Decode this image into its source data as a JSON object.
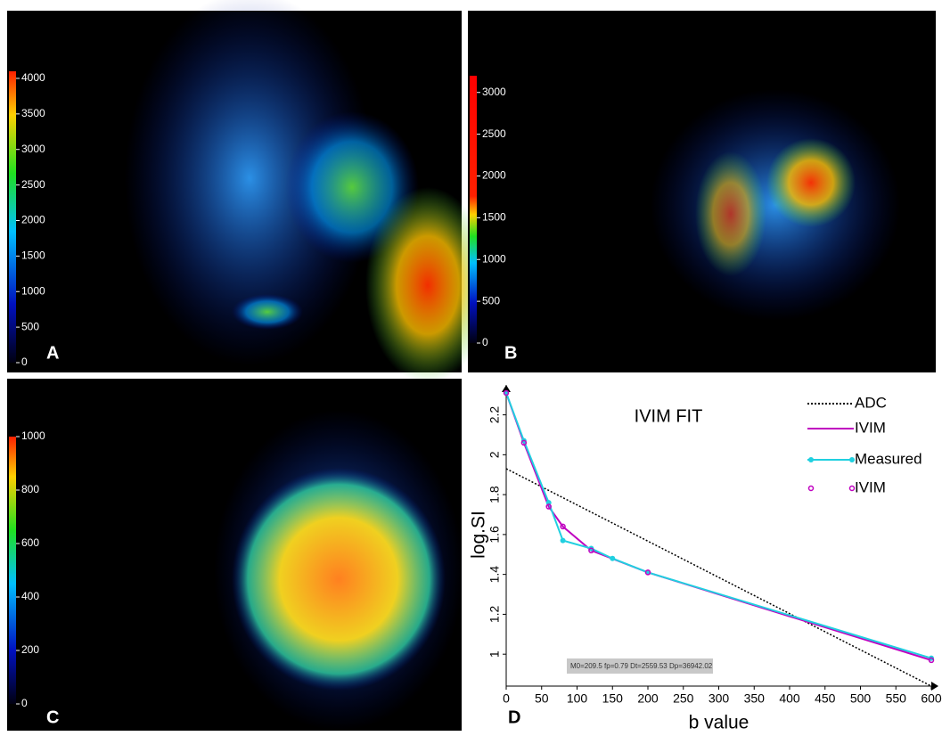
{
  "panels": [
    {
      "label": "A",
      "colorbar": {
        "lim": [
          0,
          4100
        ],
        "ticks": [
          0,
          500,
          1000,
          1500,
          2000,
          2500,
          3000,
          3500,
          4000
        ]
      }
    },
    {
      "label": "B",
      "colorbar": {
        "lim": [
          0,
          3200
        ],
        "ticks": [
          0,
          500,
          1000,
          1500,
          2000,
          2500,
          3000
        ]
      }
    },
    {
      "label": "C",
      "colorbar": {
        "lim": [
          0,
          1000
        ],
        "ticks": [
          0,
          200,
          400,
          600,
          800,
          1000
        ]
      }
    }
  ],
  "chart_data": {
    "type": "line",
    "panel_label": "D",
    "title": "IVIM FIT",
    "x_label": "b value",
    "y_label": "log.SI",
    "xlim": [
      0,
      600
    ],
    "xticks": [
      0,
      50,
      100,
      150,
      200,
      250,
      300,
      350,
      400,
      450,
      500,
      550,
      600
    ],
    "ylim": [
      0.84,
      2.35
    ],
    "yticks": [
      1,
      1.2,
      1.4,
      1.6,
      1.8,
      2.0,
      2.2
    ],
    "annotation": "M0=209.5  fp=0.79   Dt=2559.53   Dp=36942.02",
    "series": [
      {
        "name": "ADC",
        "color": "#000000",
        "line_style": "dotted",
        "marker": "none",
        "x": [
          0,
          600
        ],
        "values": [
          1.93,
          0.84
        ]
      },
      {
        "name": "IVIM",
        "color": "#c000c0",
        "line_style": "solid",
        "marker": "none",
        "x": [
          0,
          25,
          60,
          80,
          120,
          200,
          600
        ],
        "values": [
          2.31,
          2.06,
          1.74,
          1.64,
          1.52,
          1.41,
          0.97
        ]
      },
      {
        "name": "Measured",
        "color": "#20d0e0",
        "line_style": "solid",
        "marker": "dot",
        "x": [
          0,
          25,
          60,
          80,
          120,
          150,
          200,
          600
        ],
        "values": [
          2.31,
          2.07,
          1.76,
          1.57,
          1.53,
          1.48,
          1.41,
          0.98
        ]
      },
      {
        "name": "IVIM",
        "color": "#c000c0",
        "line_style": "none",
        "marker": "open-circle",
        "x": [
          0,
          25,
          60,
          80,
          120,
          200,
          600
        ],
        "values": [
          2.31,
          2.06,
          1.74,
          1.64,
          1.52,
          1.41,
          0.97
        ]
      }
    ]
  }
}
